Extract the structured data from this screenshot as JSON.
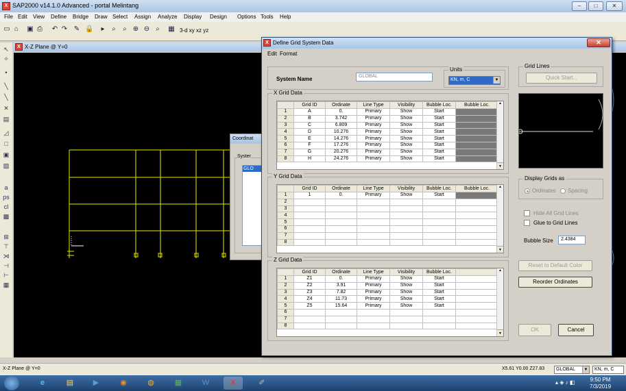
{
  "app": {
    "title": "SAP2000 v14.1.0 Advanced  - portal Melintang",
    "menu": [
      "File",
      "Edit",
      "View",
      "Define",
      "Bridge",
      "Draw",
      "Select",
      "Assign",
      "Analyze",
      "Display",
      "Design",
      "Options",
      "Tools",
      "Help"
    ],
    "view_title": "X-Z Plane @ Y=0",
    "toolbar_text": "3-d  xy  xz  yz"
  },
  "coord_dialog": {
    "title": "Coordinat",
    "group_label": "Syster",
    "list_item": "GLO"
  },
  "dialog": {
    "title": "Define Grid System Data",
    "menu": [
      "Edit",
      "Format"
    ],
    "system_name_label": "System Name",
    "system_name_value": "GLOBAL",
    "units_label": "Units",
    "units_value": "KN, m, C",
    "grid_lines_label": "Grid Lines",
    "quick_start": "Quick Start...",
    "x_grid": {
      "label": "X Grid Data",
      "headers": [
        "Grid ID",
        "Ordinate",
        "Line Type",
        "Visibility",
        "Bubble Loc.",
        "Bubble Loc."
      ],
      "rows": [
        [
          "1",
          "A",
          "0.",
          "Primary",
          "Show",
          "Start"
        ],
        [
          "2",
          "B",
          "3.742",
          "Primary",
          "Show",
          "Start"
        ],
        [
          "3",
          "C",
          "6.809",
          "Primary",
          "Show",
          "Start"
        ],
        [
          "4",
          "D",
          "10.276",
          "Primary",
          "Show",
          "Start"
        ],
        [
          "5",
          "E",
          "14.276",
          "Primary",
          "Show",
          "Start"
        ],
        [
          "6",
          "F",
          "17.276",
          "Primary",
          "Show",
          "Start"
        ],
        [
          "7",
          "G",
          "20.276",
          "Primary",
          "Show",
          "Start"
        ],
        [
          "8",
          "H",
          "24.276",
          "Primary",
          "Show",
          "Start"
        ]
      ]
    },
    "y_grid": {
      "label": "Y Grid Data",
      "headers": [
        "Grid ID",
        "Ordinate",
        "Line Type",
        "Visibility",
        "Bubble Loc.",
        "Bubble Loc."
      ],
      "rows": [
        [
          "1",
          "1",
          "0.",
          "Primary",
          "Show",
          "Start"
        ],
        [
          "2",
          "",
          "",
          "",
          "",
          ""
        ],
        [
          "3",
          "",
          "",
          "",
          "",
          ""
        ],
        [
          "4",
          "",
          "",
          "",
          "",
          ""
        ],
        [
          "5",
          "",
          "",
          "",
          "",
          ""
        ],
        [
          "6",
          "",
          "",
          "",
          "",
          ""
        ],
        [
          "7",
          "",
          "",
          "",
          "",
          ""
        ],
        [
          "8",
          "",
          "",
          "",
          "",
          ""
        ]
      ]
    },
    "z_grid": {
      "label": "Z Grid Data",
      "headers": [
        "Grid ID",
        "Ordinate",
        "Line Type",
        "Visibility",
        "Bubble Loc."
      ],
      "rows": [
        [
          "1",
          "Z1",
          "0.",
          "Primary",
          "Show",
          "Start"
        ],
        [
          "2",
          "Z2",
          "3.91",
          "Primary",
          "Show",
          "Start"
        ],
        [
          "3",
          "Z3",
          "7.82",
          "Primary",
          "Show",
          "Start"
        ],
        [
          "4",
          "Z4",
          "11.73",
          "Primary",
          "Show",
          "Start"
        ],
        [
          "5",
          "Z5",
          "15.64",
          "Primary",
          "Show",
          "Start"
        ],
        [
          "6",
          "",
          "",
          "",
          "",
          ""
        ],
        [
          "7",
          "",
          "",
          "",
          "",
          ""
        ],
        [
          "8",
          "",
          "",
          "",
          "",
          ""
        ]
      ]
    },
    "display_grids_label": "Display Grids as",
    "ordinates_label": "Ordinates",
    "spacing_label": "Spacing",
    "hide_all_label": "Hide All Grid Lines",
    "glue_label": "Glue to Grid Lines",
    "bubble_size_label": "Bubble Size",
    "bubble_size_value": "2.4384",
    "reset_color": "Reset to Default Color",
    "reorder": "Reorder Ordinates",
    "ok": "OK",
    "cancel": "Cancel"
  },
  "status": {
    "left": "X-Z Plane @ Y=0",
    "coords": "X5.61  Y0.00  Z27.83",
    "system": "GLOBAL",
    "units": "KN, m, C"
  },
  "clock": {
    "time": "9:50 PM",
    "date": "7/3/2019"
  }
}
